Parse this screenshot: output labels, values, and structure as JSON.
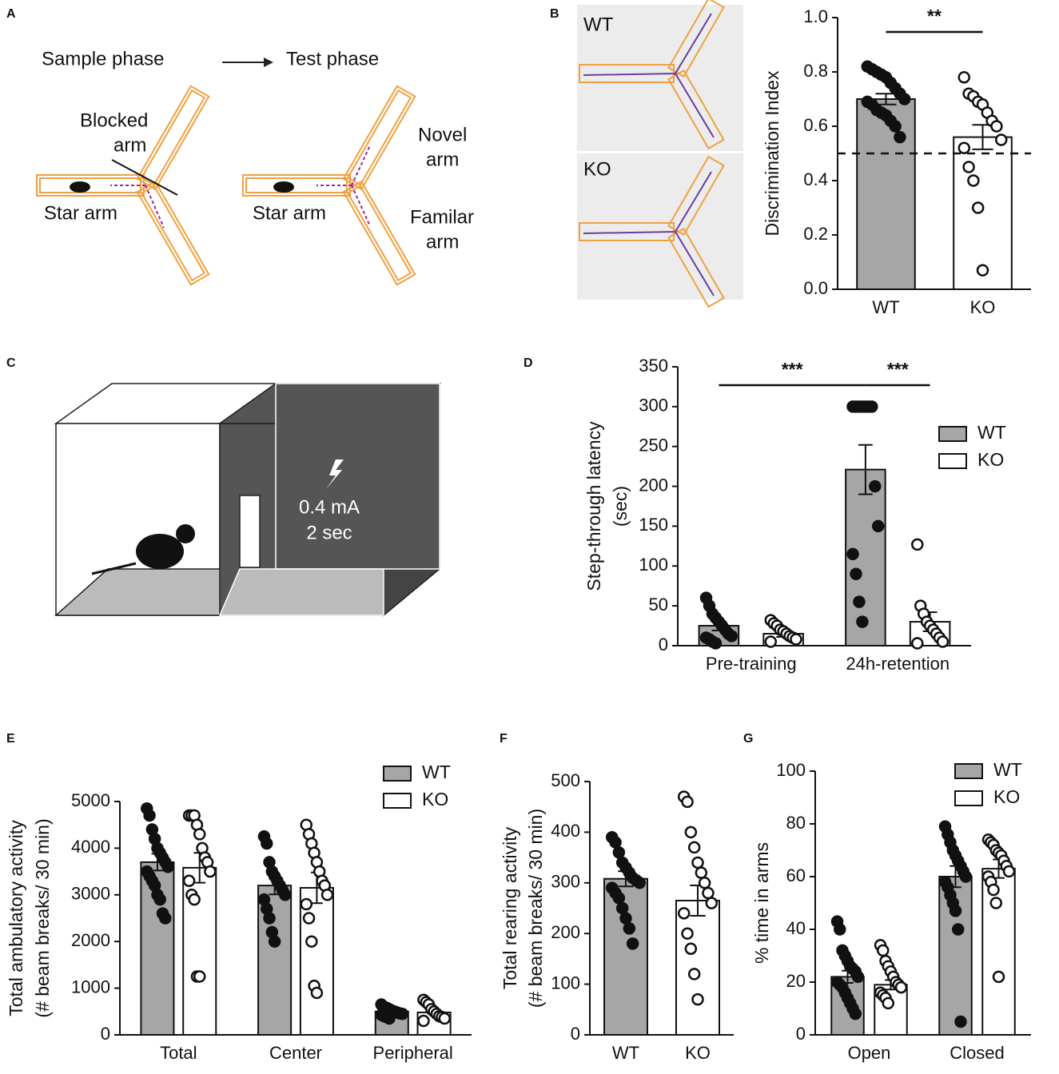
{
  "panel_labels": [
    "A",
    "B",
    "C",
    "D",
    "E",
    "F",
    "G"
  ],
  "diagram_a": {
    "left_title": "Sample phase",
    "right_title": "Test phase",
    "blocked_arm": [
      "Blocked",
      "arm"
    ],
    "left_start": "Star arm",
    "right_start": "Star arm",
    "novel_arm": [
      "Novel",
      "arm"
    ],
    "familiar_arm": [
      "Familar",
      "arm"
    ]
  },
  "photo_b": {
    "top_label": "WT",
    "bottom_label": "KO"
  },
  "diagram_c": {
    "current": "0.4 mA",
    "duration": "2 sec"
  },
  "chart_data": [
    {
      "type": "bar",
      "ylabel": [
        "Discrimination Index"
      ],
      "categories": [
        "WT",
        "KO"
      ],
      "values": [
        0.7,
        0.56
      ],
      "errors": [
        0.02,
        0.045
      ],
      "colors": [
        "#a6a6a6",
        "#ffffff"
      ],
      "points": [
        [
          0.82,
          0.81,
          0.8,
          0.79,
          0.78,
          0.76,
          0.74,
          0.72,
          0.7,
          0.69,
          0.68,
          0.66,
          0.65,
          0.64,
          0.62,
          0.6,
          0.56
        ],
        [
          0.78,
          0.72,
          0.71,
          0.69,
          0.68,
          0.65,
          0.62,
          0.6,
          0.55,
          0.52,
          0.45,
          0.4,
          0.3,
          0.07
        ]
      ],
      "reference_line": 0.5,
      "annotations": [
        {
          "text": "**"
        }
      ],
      "ylim": [
        0,
        1
      ],
      "yticks": [
        {
          "value": 0,
          "label": "0.0"
        },
        0.2,
        0.4,
        0.6,
        0.8,
        {
          "value": 1,
          "label": "1.0"
        }
      ]
    },
    {
      "type": "grouped-bar",
      "ylabel": [
        "Step-through latency",
        "(sec)"
      ],
      "categories": [
        "Pre-training",
        "24h-retention"
      ],
      "series": [
        {
          "name": "WT",
          "color": "#a6a6a6",
          "values": [
            25,
            221
          ],
          "errors": [
            6,
            31
          ],
          "points": [
            [
              60,
              50,
              40,
              35,
              30,
              25,
              20,
              15,
              12,
              10,
              8,
              5,
              3
            ],
            [
              300,
              300,
              300,
              300,
              300,
              300,
              300,
              200,
              150,
              115,
              90,
              55,
              30
            ]
          ]
        },
        {
          "name": "KO",
          "color": "#ffffff",
          "values": [
            15,
            30
          ],
          "errors": [
            4,
            12
          ],
          "points": [
            [
              32,
              28,
              25,
              20,
              18,
              15,
              12,
              10,
              8,
              5
            ],
            [
              127,
              50,
              40,
              30,
              25,
              20,
              15,
              10,
              5,
              3
            ]
          ]
        }
      ],
      "annotations": [
        {
          "text": "***"
        },
        {
          "text": "***"
        }
      ],
      "ylim": [
        0,
        350
      ],
      "yticks": [
        0,
        50,
        100,
        150,
        200,
        250,
        300,
        350
      ]
    },
    {
      "type": "grouped-bar",
      "ylabel": [
        "Total ambulatory activity",
        "(# beam breaks/ 30 min)"
      ],
      "categories": [
        "Total",
        "Center",
        "Peripheral"
      ],
      "series": [
        {
          "name": "WT",
          "color": "#a6a6a6",
          "values": [
            3700,
            3200,
            500
          ],
          "errors": [
            180,
            190,
            30
          ],
          "points": [
            [
              4850,
              4700,
              4400,
              4200,
              4000,
              3900,
              3800,
              3700,
              3600,
              3500,
              3400,
              3300,
              3200,
              3000,
              2900,
              2600,
              2500
            ],
            [
              4250,
              4100,
              3700,
              3500,
              3400,
              3300,
              3200,
              3100,
              3000,
              2900,
              2700,
              2500,
              2200,
              2000
            ],
            [
              650,
              600,
              580,
              550,
              520,
              500,
              480,
              460,
              450,
              430,
              400,
              380,
              350
            ]
          ]
        },
        {
          "name": "KO",
          "color": "#ffffff",
          "values": [
            3580,
            3150,
            480
          ],
          "errors": [
            320,
            330,
            40
          ],
          "points": [
            [
              4700,
              4700,
              4700,
              4500,
              4300,
              4000,
              3800,
              3700,
              3500,
              3300,
              3000,
              2900,
              1250,
              1250
            ],
            [
              4500,
              4300,
              4100,
              3900,
              3700,
              3500,
              3300,
              3200,
              3000,
              2800,
              2500,
              2000,
              1050,
              900
            ],
            [
              750,
              700,
              650,
              550,
              500,
              450,
              400,
              380,
              350,
              300
            ]
          ]
        }
      ],
      "ylim": [
        0,
        5000
      ],
      "yticks": [
        0,
        1000,
        2000,
        3000,
        4000,
        5000
      ]
    },
    {
      "type": "bar",
      "ylabel": [
        "Total rearing activity",
        "(# beam breaks/ 30 min)"
      ],
      "categories": [
        "WT",
        "KO"
      ],
      "values": [
        308,
        265
      ],
      "errors": [
        15,
        30
      ],
      "colors": [
        "#a6a6a6",
        "#ffffff"
      ],
      "points": [
        [
          390,
          380,
          360,
          340,
          330,
          320,
          310,
          305,
          300,
          290,
          280,
          270,
          250,
          230,
          210,
          180
        ],
        [
          470,
          460,
          400,
          370,
          340,
          320,
          300,
          280,
          260,
          240,
          200,
          170,
          120,
          70
        ]
      ],
      "ylim": [
        0,
        500
      ],
      "yticks": [
        0,
        100,
        200,
        300,
        400,
        500
      ]
    },
    {
      "type": "grouped-bar",
      "ylabel": [
        "% time in arms"
      ],
      "categories": [
        "Open",
        "Closed"
      ],
      "series": [
        {
          "name": "WT",
          "color": "#a6a6a6",
          "values": [
            22,
            60
          ],
          "errors": [
            2.3,
            4
          ],
          "points": [
            [
              43,
              40,
              32,
              30,
              28,
              26,
              25,
              24,
              22,
              20,
              19,
              18,
              16,
              14,
              12,
              10,
              8
            ],
            [
              79,
              76,
              73,
              70,
              68,
              66,
              64,
              62,
              60,
              58,
              56,
              53,
              50,
              47,
              40,
              5
            ]
          ]
        },
        {
          "name": "KO",
          "color": "#ffffff",
          "values": [
            19,
            63
          ],
          "errors": [
            1.8,
            3.5
          ],
          "points": [
            [
              34,
              32,
              28,
              26,
              24,
              22,
              20,
              19,
              18,
              16,
              15,
              14,
              12
            ],
            [
              74,
              73,
              72,
              70,
              69,
              68,
              66,
              64,
              62,
              60,
              58,
              55,
              50,
              22
            ]
          ]
        }
      ],
      "ylim": [
        0,
        100
      ],
      "yticks": [
        0,
        20,
        40,
        60,
        80,
        100
      ]
    }
  ]
}
